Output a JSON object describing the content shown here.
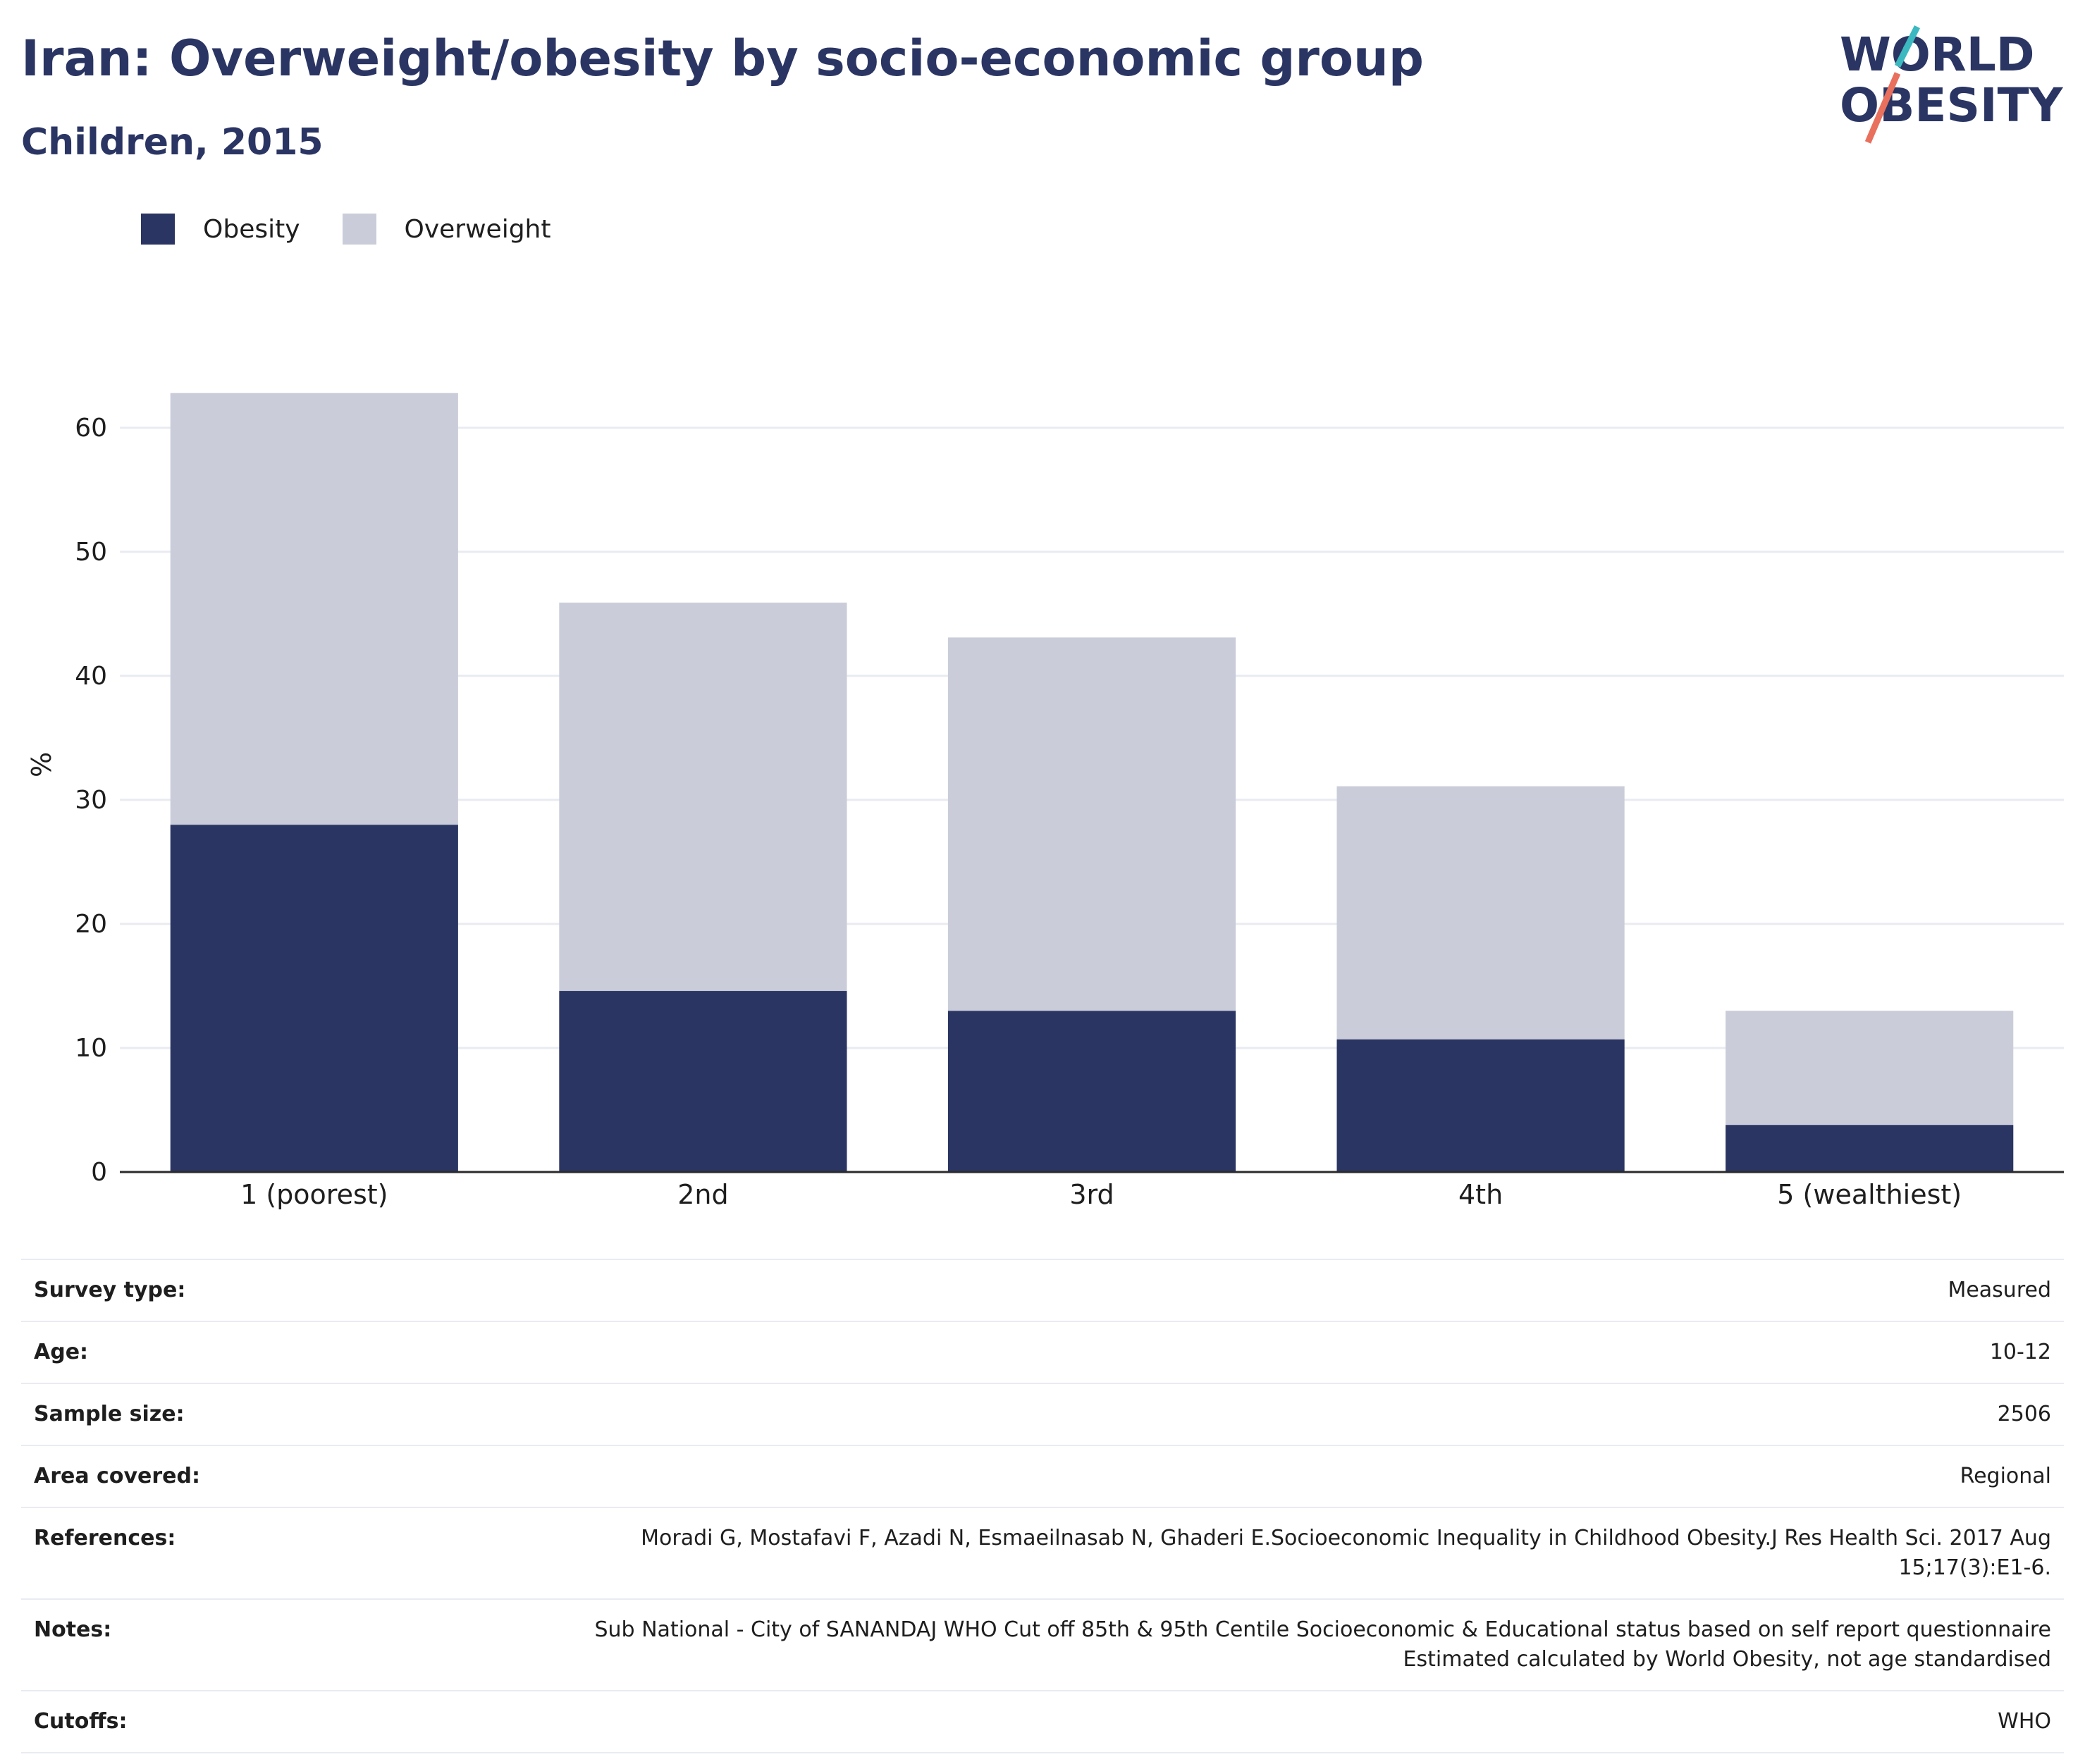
{
  "header": {
    "title": "Iran: Overweight/obesity by socio-economic group",
    "subtitle": "Children, 2015"
  },
  "logo": {
    "line1": "WORLD",
    "line2": "OBESITY",
    "colors": {
      "text": "#2a3563",
      "slash_top": "#3bb8c0",
      "slash_bottom": "#e8705d"
    }
  },
  "legend": {
    "items": [
      {
        "label": "Obesity",
        "color": "#2a3563"
      },
      {
        "label": "Overweight",
        "color": "#cacdd9"
      }
    ]
  },
  "chart_data": {
    "type": "bar",
    "stacked": true,
    "categories": [
      "1 (poorest)",
      "2nd",
      "3rd",
      "4th",
      "5 (wealthiest)"
    ],
    "series": [
      {
        "name": "Obesity",
        "values": [
          28.0,
          14.6,
          13.0,
          10.7,
          3.8
        ],
        "color": "#2a3563"
      },
      {
        "name": "Overweight",
        "values": [
          34.8,
          31.3,
          30.1,
          20.4,
          9.2
        ],
        "color": "#cacdd9"
      }
    ],
    "ylabel": "%",
    "yticks": [
      0,
      10,
      20,
      30,
      40,
      50,
      60
    ],
    "ylim": [
      0,
      65
    ],
    "grid": true,
    "legend_position": "top-left"
  },
  "info": {
    "rows": [
      {
        "label": "Survey type:",
        "value": "Measured"
      },
      {
        "label": "Age:",
        "value": "10-12"
      },
      {
        "label": "Sample size:",
        "value": "2506"
      },
      {
        "label": "Area covered:",
        "value": "Regional"
      },
      {
        "label": "References:",
        "value": "Moradi G, Mostafavi F, Azadi N, Esmaeilnasab N, Ghaderi E.Socioeconomic Inequality in Childhood Obesity.J Res Health Sci. 2017 Aug 15;17(3):E1-6."
      },
      {
        "label": "Notes:",
        "value": "Sub National - City of SANANDAJ WHO Cut off 85th & 95th Centile Socioeconomic & Educational status based on self report questionnaire Estimated calculated by World Obesity, not age standardised"
      },
      {
        "label": "Cutoffs:",
        "value": "WHO"
      }
    ]
  }
}
